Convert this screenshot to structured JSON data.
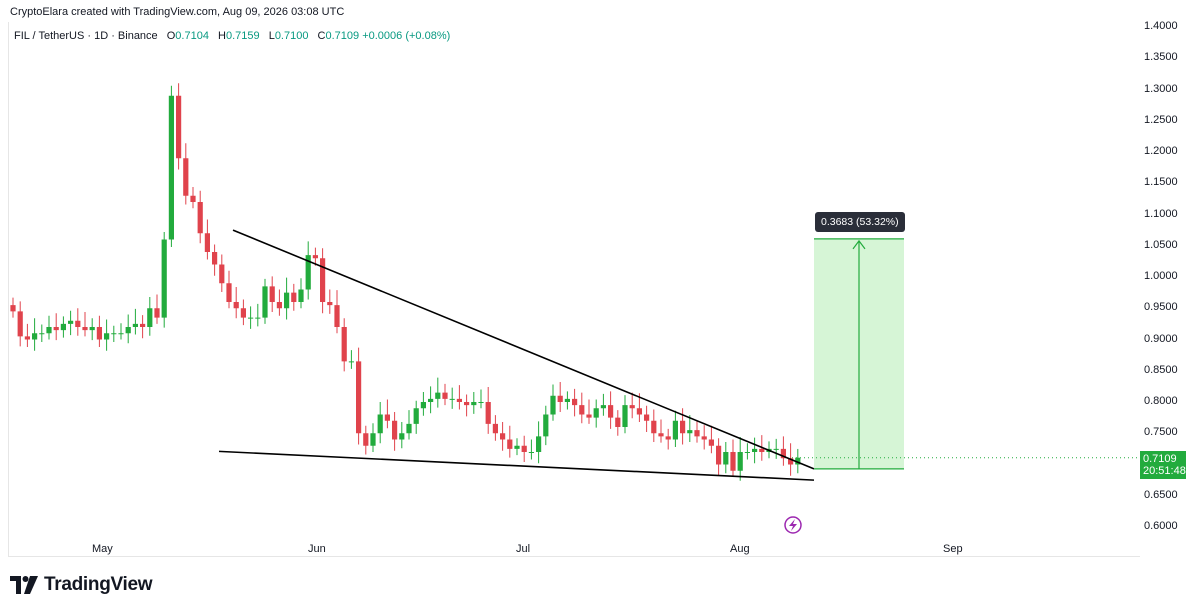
{
  "caption": "CryptoElara created with TradingView.com, Aug 09, 2026 03:08 UTC",
  "legend": {
    "symbol": "FIL / TetherUS · 1D · Binance",
    "open_label": "O",
    "open": "0.7104",
    "high_label": "H",
    "high": "0.7159",
    "low_label": "L",
    "low": "0.7100",
    "close_label": "C",
    "close": "0.7109",
    "change": "+0.0006 (+0.08%)"
  },
  "current_price": "0.7109",
  "countdown": "20:51:48",
  "measure_label": "0.3683 (53.32%)",
  "footer_brand": "TradingView",
  "colors": {
    "up": "#22ab3d",
    "down": "#e0434c",
    "target_fill": "#d6f5d6",
    "target_stroke": "#22ab3d",
    "trendline": "#000000",
    "brand": "#131722"
  },
  "chart_data": {
    "type": "candlestick",
    "y_axis": {
      "ticks": [
        "1.4000",
        "1.3500",
        "1.3000",
        "1.2500",
        "1.2000",
        "1.1500",
        "1.1000",
        "1.0500",
        "1.0000",
        "0.9500",
        "0.9000",
        "0.8500",
        "0.8000",
        "0.7500",
        "0.7000",
        "0.6500",
        "0.6000"
      ],
      "ylim": [
        0.58,
        1.41
      ]
    },
    "x_axis": {
      "ticks": [
        "May",
        "Jun",
        "Jul",
        "Aug",
        "Sep"
      ]
    },
    "candles_close": [
      0.945,
      0.905,
      0.9,
      0.91,
      0.91,
      0.92,
      0.915,
      0.925,
      0.93,
      0.92,
      0.915,
      0.92,
      0.9,
      0.91,
      0.91,
      0.91,
      0.92,
      0.925,
      0.92,
      0.95,
      0.935,
      1.06,
      1.29,
      1.19,
      1.13,
      1.12,
      1.07,
      1.04,
      1.02,
      0.99,
      0.96,
      0.95,
      0.935,
      0.935,
      0.935,
      0.985,
      0.96,
      0.95,
      0.975,
      0.96,
      0.98,
      1.035,
      1.03,
      0.96,
      0.955,
      0.92,
      0.865,
      0.865,
      0.75,
      0.73,
      0.75,
      0.78,
      0.77,
      0.74,
      0.75,
      0.765,
      0.79,
      0.8,
      0.805,
      0.815,
      0.805,
      0.805,
      0.8,
      0.795,
      0.8,
      0.8,
      0.765,
      0.75,
      0.74,
      0.725,
      0.73,
      0.72,
      0.72,
      0.745,
      0.78,
      0.81,
      0.8,
      0.805,
      0.795,
      0.78,
      0.775,
      0.79,
      0.795,
      0.775,
      0.76,
      0.795,
      0.79,
      0.78,
      0.77,
      0.75,
      0.745,
      0.74,
      0.77,
      0.75,
      0.755,
      0.745,
      0.74,
      0.73,
      0.7,
      0.72,
      0.69,
      0.72,
      0.72,
      0.725,
      0.72,
      0.725,
      0.725,
      0.71,
      0.7,
      0.7109
    ],
    "annotations": {
      "upper_trendline": [
        {
          "price": 1.075
        },
        {
          "price": 0.693
        }
      ],
      "lower_trendline": [
        {
          "price": 0.721
        },
        {
          "price": 0.675
        }
      ],
      "target_zone": {
        "from": 0.693,
        "to": 1.061,
        "delta": "0.3683 (53.32%)"
      }
    }
  }
}
